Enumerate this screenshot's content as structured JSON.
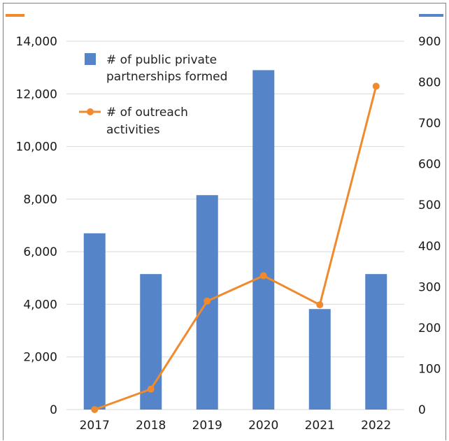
{
  "chart_data": {
    "type": "bar+line",
    "categories": [
      "2017",
      "2018",
      "2019",
      "2020",
      "2021",
      "2022"
    ],
    "series": [
      {
        "name": "# of public private partnerships formed",
        "type": "bar",
        "axis": "left",
        "values": [
          6700,
          5150,
          8150,
          12900,
          3820,
          5150
        ]
      },
      {
        "name": "# of outreach activities",
        "type": "line",
        "axis": "right",
        "values": [
          0,
          50,
          265,
          327,
          256,
          790
        ]
      }
    ],
    "y_left": {
      "ylim": [
        0,
        14000
      ],
      "ticks": [
        "0",
        "2,000",
        "4,000",
        "6,000",
        "8,000",
        "10,000",
        "12,000",
        "14,000"
      ]
    },
    "y_right": {
      "ylim": [
        0,
        900
      ],
      "ticks": [
        "0",
        "100",
        "200",
        "300",
        "400",
        "500",
        "600",
        "700",
        "800",
        "900"
      ]
    },
    "legend": {
      "placement": "top-left",
      "bar_label_lines": [
        "# of public private",
        "partnerships formed"
      ],
      "line_label_lines": [
        "# of outreach",
        "activities"
      ]
    },
    "grid": true,
    "colors": {
      "bar": "#5585c8",
      "line": "#f08a2c",
      "grid": "#d9d9d9"
    }
  }
}
